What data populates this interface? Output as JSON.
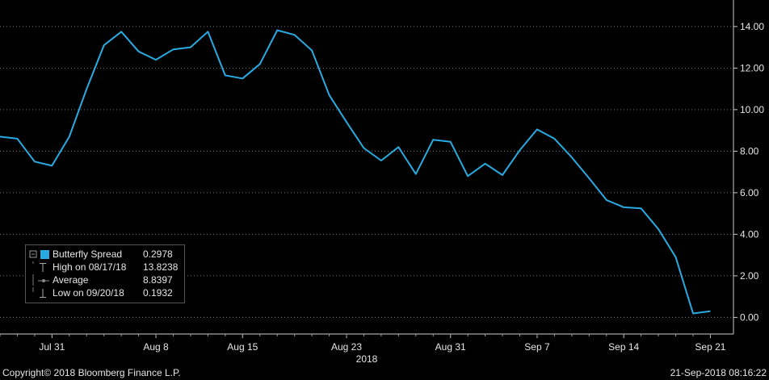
{
  "chart_data": {
    "type": "line",
    "year_label": "2018",
    "x_tick_labels": [
      "Jul 31",
      "Aug 8",
      "Aug 15",
      "Aug 23",
      "Aug 31",
      "Sep 7",
      "Sep 14",
      "Sep 21"
    ],
    "y_tick_labels": [
      "0.00",
      "2.00",
      "4.00",
      "6.00",
      "8.00",
      "10.00",
      "12.00",
      "14.00"
    ],
    "ylim": [
      -0.8,
      15.2
    ],
    "grid": true,
    "legend_position": "bottom-left",
    "series": [
      {
        "name": "Butterfly Spread",
        "color": "#29abe2",
        "x": [
          "2018-07-26",
          "2018-07-27",
          "2018-07-30",
          "2018-07-31",
          "2018-08-01",
          "2018-08-02",
          "2018-08-03",
          "2018-08-06",
          "2018-08-07",
          "2018-08-08",
          "2018-08-09",
          "2018-08-10",
          "2018-08-13",
          "2018-08-14",
          "2018-08-15",
          "2018-08-16",
          "2018-08-17",
          "2018-08-20",
          "2018-08-21",
          "2018-08-22",
          "2018-08-23",
          "2018-08-24",
          "2018-08-27",
          "2018-08-28",
          "2018-08-29",
          "2018-08-30",
          "2018-08-31",
          "2018-09-03",
          "2018-09-04",
          "2018-09-05",
          "2018-09-06",
          "2018-09-07",
          "2018-09-10",
          "2018-09-11",
          "2018-09-12",
          "2018-09-13",
          "2018-09-14",
          "2018-09-17",
          "2018-09-18",
          "2018-09-19",
          "2018-09-20",
          "2018-09-21"
        ],
        "values": [
          8.7,
          8.6,
          7.5,
          7.3,
          8.7,
          11.0,
          13.1,
          13.75,
          12.8,
          12.4,
          12.9,
          13.0,
          13.75,
          11.65,
          11.5,
          12.2,
          13.82,
          13.6,
          12.85,
          10.7,
          9.4,
          8.15,
          7.55,
          8.2,
          6.9,
          8.55,
          8.45,
          6.8,
          7.4,
          6.85,
          8.05,
          9.05,
          8.6,
          7.7,
          6.7,
          5.65,
          5.3,
          5.25,
          4.25,
          2.9,
          0.19,
          0.3
        ]
      }
    ],
    "legend": {
      "rows": [
        {
          "label": "Butterfly Spread",
          "value": "0.2978"
        },
        {
          "label": "High on 08/17/18",
          "value": "13.8238"
        },
        {
          "label": "Average",
          "value": "8.8397"
        },
        {
          "label": "Low on 09/20/18",
          "value": "0.1932"
        }
      ]
    }
  },
  "footer": {
    "copyright": "Copyright© 2018 Bloomberg Finance L.P.",
    "timestamp": "21-Sep-2018 08:16:22"
  }
}
